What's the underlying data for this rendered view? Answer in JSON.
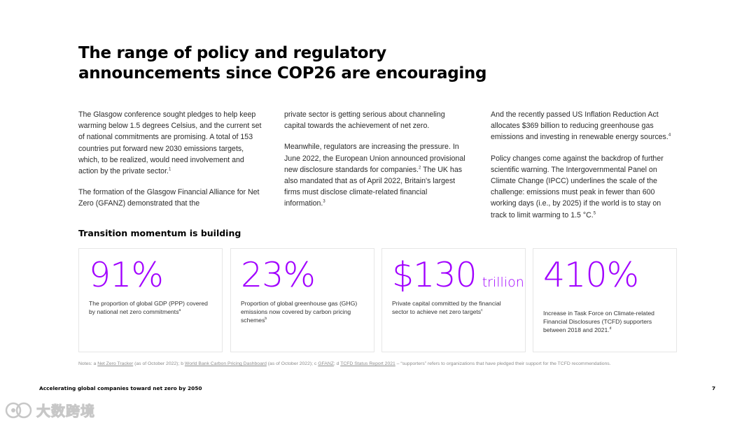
{
  "title": "The range of policy and regulatory announcements since COP26 are encouraging",
  "body": {
    "col1": {
      "p1": "The Glasgow conference sought pledges to help keep warming below 1.5 degrees Celsius, and the current set of national commitments are promising. A total of 153 countries put forward new 2030 emissions targets, which, to be realized, would need involvement and action by the private sector.",
      "p1_ref": "1",
      "p2": "The formation of the Glasgow Financial Alliance for Net Zero (GFANZ) demonstrated that the"
    },
    "col2": {
      "p1": "private sector is getting serious about channeling capital towards the achievement of net zero.",
      "p2a": "Meanwhile, regulators are increasing the pressure. In June 2022, the European Union announced provisional new disclosure standards for companies.",
      "p2a_ref": "2",
      "p2b": " The UK has also mandated that as of April 2022, Britain's largest firms must disclose climate-related financial information.",
      "p2b_ref": "3"
    },
    "col3": {
      "p1": "And the recently passed US Inflation Reduction Act allocates $369 billion to reducing greenhouse gas emissions and investing in renewable energy sources.",
      "p1_ref": "4",
      "p2": "Policy changes come against the backdrop of further scientific warning. The Intergovernmental Panel on Climate Change (IPCC) underlines the scale of the challenge: emissions must peak in fewer than 600 working days (i.e., by 2025) if the world is to stay on track to limit warming to 1.5 °C.",
      "p2_ref": "5"
    }
  },
  "subhead": "Transition momentum is building",
  "stats": [
    {
      "value": "91%",
      "unit": "",
      "desc": "The proportion of global GDP (PPP) covered by national net zero commitments",
      "ref": "a"
    },
    {
      "value": "23%",
      "unit": "",
      "desc": "Proportion of global greenhouse gas (GHG) emissions now covered by carbon pricing schemes",
      "ref": "b"
    },
    {
      "value": "$130",
      "unit": "trillion",
      "desc": "Private capital committed by the financial sector to achieve net zero targets",
      "ref": "c"
    },
    {
      "value": "410%",
      "unit": "",
      "desc": "Increase in Task Force on Climate-related Financial Disclosures (TCFD) supporters between 2018 and 2021.",
      "ref": "d"
    }
  ],
  "notes": {
    "label": "Notes: ",
    "ref_a": "a ",
    "link_a": "Net Zero Tracker",
    "text_a": " (as of October 2022); ",
    "ref_b": "b ",
    "link_b": "World Bank Carbon Pricing Dashboard",
    "text_b": " (as of October 2022); ",
    "ref_c": "c ",
    "link_c": "GFANZ",
    "text_c": "; ",
    "ref_d": "d ",
    "link_d": "TCFD Status Report 2021",
    "text_d": " – “supporters” refers to organizations that have pledged their support for the TCFD recommendations."
  },
  "footer": {
    "text": "Accelerating global companies toward net zero by 2050",
    "page": "7"
  },
  "watermark": {
    "text": "大数跨境"
  },
  "colors": {
    "accent": "#a100ff",
    "card_border": "#e6e6e6",
    "notes": "#8c8c8c"
  }
}
